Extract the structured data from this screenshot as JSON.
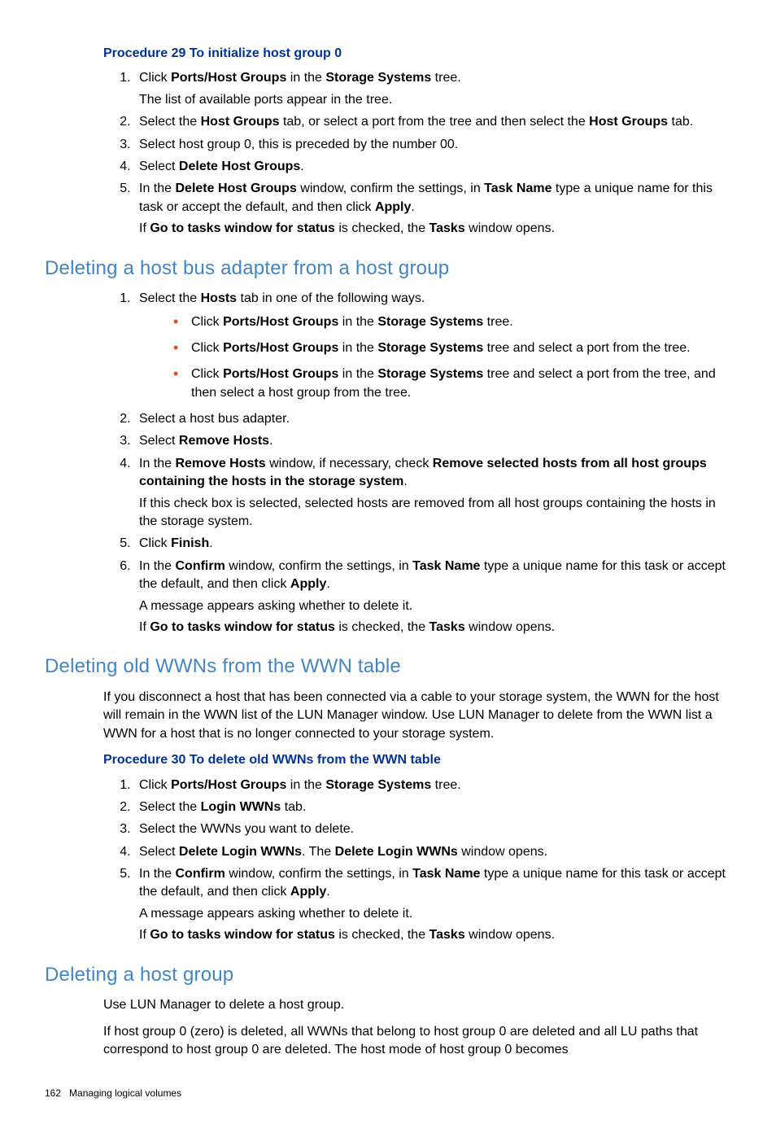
{
  "proc29": {
    "title": "Procedure 29 To initialize host group 0",
    "steps": {
      "s1a": "Click ",
      "s1b": "Ports/Host Groups",
      "s1c": " in the ",
      "s1d": "Storage Systems",
      "s1e": " tree.",
      "s1p": "The list of available ports appear in the tree.",
      "s2a": "Select the ",
      "s2b": "Host Groups",
      "s2c": " tab, or select a port from the tree and then select the ",
      "s2d": "Host Groups",
      "s2e": " tab.",
      "s3": "Select host group 0, this is preceded by the number 00.",
      "s4a": "Select ",
      "s4b": "Delete Host Groups",
      "s4c": ".",
      "s5a": "In the ",
      "s5b": "Delete Host Groups",
      "s5c": " window, confirm the settings, in ",
      "s5d": "Task Name",
      "s5e": " type a unique name for this task or accept the default, and then click ",
      "s5f": "Apply",
      "s5g": ".",
      "s5p1a": "If ",
      "s5p1b": "Go to tasks window for status",
      "s5p1c": " is checked, the ",
      "s5p1d": "Tasks",
      "s5p1e": " window opens."
    }
  },
  "sec1": {
    "title": "Deleting a host bus adapter from a host group",
    "steps": {
      "s1a": "Select the ",
      "s1b": "Hosts",
      "s1c": " tab in one of the following ways.",
      "b1a": "Click ",
      "b1b": "Ports/Host Groups",
      "b1c": " in the ",
      "b1d": "Storage Systems",
      "b1e": " tree.",
      "b2a": "Click ",
      "b2b": "Ports/Host Groups",
      "b2c": " in the ",
      "b2d": "Storage Systems",
      "b2e": " tree and select a port from the tree.",
      "b3a": "Click ",
      "b3b": "Ports/Host Groups",
      "b3c": " in the ",
      "b3d": "Storage Systems",
      "b3e": " tree and select a port from the tree, and then select a host group from the tree.",
      "s2": "Select a host bus adapter.",
      "s3a": "Select ",
      "s3b": "Remove Hosts",
      "s3c": ".",
      "s4a": "In the ",
      "s4b": "Remove Hosts",
      "s4c": " window, if necessary, check ",
      "s4d": "Remove selected hosts from all host groups containing the hosts in the storage system",
      "s4e": ".",
      "s4p": "If this check box is selected, selected hosts are removed from all host groups containing the hosts in the storage system.",
      "s5a": "Click ",
      "s5b": "Finish",
      "s5c": ".",
      "s6a": "In the ",
      "s6b": "Confirm",
      "s6c": " window, confirm the settings, in ",
      "s6d": "Task Name",
      "s6e": " type a unique name for this task or accept the default, and then click ",
      "s6f": "Apply",
      "s6g": ".",
      "s6p1": "A message appears asking whether to delete it.",
      "s6p2a": "If ",
      "s6p2b": "Go to tasks window for status",
      "s6p2c": " is checked, the ",
      "s6p2d": "Tasks",
      "s6p2e": " window opens."
    }
  },
  "sec2": {
    "title": "Deleting old WWNs from the WWN table",
    "intro": "If you disconnect a host that has been connected via a cable to your storage system, the WWN for the host will remain in the WWN list of the LUN Manager window. Use LUN Manager to delete from the WWN list a WWN for a host that is no longer connected to your storage system.",
    "proc_title": "Procedure 30 To delete old WWNs from the WWN table",
    "steps": {
      "s1a": "Click ",
      "s1b": "Ports/Host Groups",
      "s1c": " in the ",
      "s1d": "Storage Systems",
      "s1e": " tree.",
      "s2a": "Select the ",
      "s2b": "Login WWNs",
      "s2c": " tab.",
      "s3": "Select the WWNs you want to delete.",
      "s4a": "Select ",
      "s4b": "Delete Login WWNs",
      "s4c": ". The ",
      "s4d": "Delete Login WWNs",
      "s4e": " window opens.",
      "s5a": "In the ",
      "s5b": "Confirm",
      "s5c": " window, confirm the settings, in ",
      "s5d": "Task Name",
      "s5e": " type a unique name for this task or accept the default, and then click ",
      "s5f": "Apply",
      "s5g": ".",
      "s5p1": "A message appears asking whether to delete it.",
      "s5p2a": "If ",
      "s5p2b": "Go to tasks window for status",
      "s5p2c": " is checked, the ",
      "s5p2d": "Tasks",
      "s5p2e": " window opens."
    }
  },
  "sec3": {
    "title": "Deleting a host group",
    "p1": "Use LUN Manager to delete a host group.",
    "p2": "If host group 0 (zero) is deleted, all WWNs that belong to host group 0 are deleted and all LU paths that correspond to host group 0 are deleted. The host mode of host group 0 becomes"
  },
  "footer": {
    "page": "162",
    "chapter": "Managing logical volumes"
  }
}
